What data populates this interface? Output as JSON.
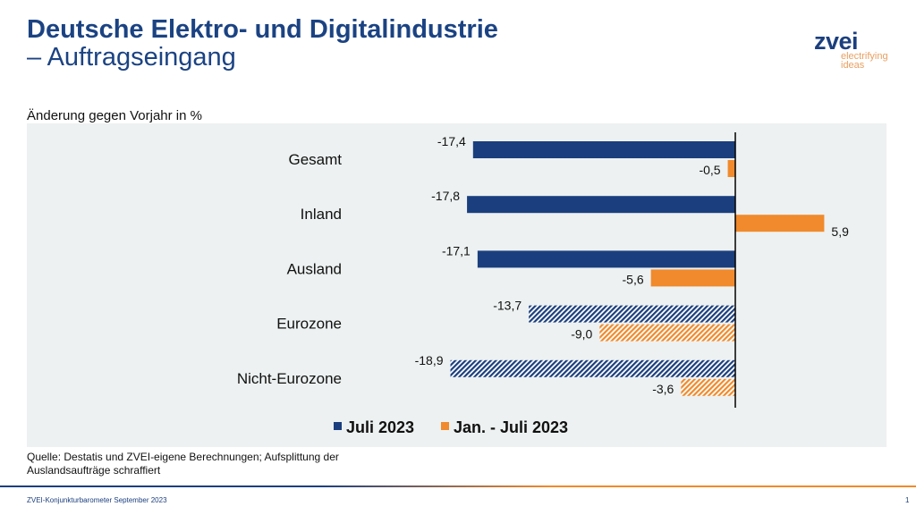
{
  "title": {
    "line1": "Deutsche Elektro- und Digitalindustrie",
    "line2": "– Auftragseingang"
  },
  "logo": {
    "name": "zvei",
    "slogan1": "electrifying",
    "slogan2": "ideas"
  },
  "source": {
    "line1": "Quelle: Destatis und ZVEI-eigene Berechnungen; Aufsplittung der",
    "line2": "Auslandsaufträge schraffiert"
  },
  "footer": {
    "text": "ZVEI-Konjunkturbarometer September 2023",
    "page": "1"
  },
  "chart_data": {
    "type": "bar",
    "orientation": "horizontal",
    "subtitle": "Änderung gegen Vorjahr in %",
    "categories": [
      "Gesamt",
      "Inland",
      "Ausland",
      "Eurozone",
      "Nicht-Eurozone"
    ],
    "hatched_categories": [
      "Eurozone",
      "Nicht-Eurozone"
    ],
    "series": [
      {
        "name": "Juli 2023",
        "color": "#1b3f7e",
        "values": [
          -17.4,
          -17.8,
          -17.1,
          -13.7,
          -18.9
        ],
        "labels": [
          "-17,4",
          "-17,8",
          "-17,1",
          "-13,7",
          "-18,9"
        ]
      },
      {
        "name": "Jan. - Juli 2023",
        "color": "#f08a2c",
        "values": [
          -0.5,
          5.9,
          -5.6,
          -9.0,
          -3.6
        ],
        "labels": [
          "-0,5",
          "5,9",
          "-5,6",
          "-9,0",
          "-3,6"
        ]
      }
    ],
    "legend": "bottom",
    "grid": false,
    "background": "#edf1f1"
  }
}
